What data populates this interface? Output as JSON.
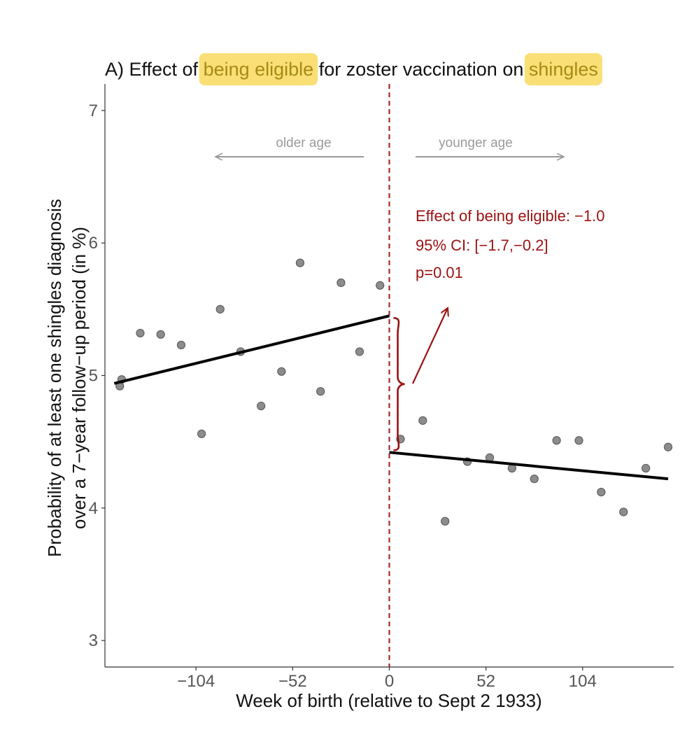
{
  "chart_data": {
    "type": "scatter",
    "title": {
      "prefix": "A) Effect of ",
      "highlight1": "being eligible",
      "middle": " for zoster vaccination on ",
      "highlight2": "shingles"
    },
    "xlabel": "Week of birth (relative to Sept 2 1933)",
    "ylabel_line1": "Probability of at least one shingles diagnosis",
    "ylabel_line2": "over a 7−year follow−up period (in %)",
    "xlim": [
      -153,
      153
    ],
    "ylim": [
      2.8,
      7.2
    ],
    "x_ticks": [
      {
        "value": -104,
        "label": "−104"
      },
      {
        "value": -52,
        "label": "−52"
      },
      {
        "value": 0,
        "label": "0"
      },
      {
        "value": 52,
        "label": "52"
      },
      {
        "value": 104,
        "label": "104"
      }
    ],
    "y_ticks": [
      {
        "value": 3,
        "label": "3"
      },
      {
        "value": 4,
        "label": "4"
      },
      {
        "value": 5,
        "label": "5"
      },
      {
        "value": 6,
        "label": "6"
      },
      {
        "value": 7,
        "label": "7"
      }
    ],
    "grid": false,
    "cutoff_x": 0,
    "points": [
      {
        "x": -145,
        "y": 4.92
      },
      {
        "x": -144,
        "y": 4.97
      },
      {
        "x": -134,
        "y": 5.32
      },
      {
        "x": -123,
        "y": 5.31
      },
      {
        "x": -112,
        "y": 5.23
      },
      {
        "x": -101,
        "y": 4.56
      },
      {
        "x": -91,
        "y": 5.5
      },
      {
        "x": -80,
        "y": 5.18
      },
      {
        "x": -69,
        "y": 4.77
      },
      {
        "x": -58,
        "y": 5.03
      },
      {
        "x": -48,
        "y": 5.85
      },
      {
        "x": -37,
        "y": 4.88
      },
      {
        "x": -26,
        "y": 5.7
      },
      {
        "x": -16,
        "y": 5.18
      },
      {
        "x": -5,
        "y": 5.68
      },
      {
        "x": 6,
        "y": 4.52
      },
      {
        "x": 18,
        "y": 4.66
      },
      {
        "x": 30,
        "y": 3.9
      },
      {
        "x": 42,
        "y": 4.35
      },
      {
        "x": 54,
        "y": 4.38
      },
      {
        "x": 66,
        "y": 4.3
      },
      {
        "x": 78,
        "y": 4.22
      },
      {
        "x": 90,
        "y": 4.51
      },
      {
        "x": 102,
        "y": 4.51
      },
      {
        "x": 114,
        "y": 4.12
      },
      {
        "x": 126,
        "y": 3.97
      },
      {
        "x": 138,
        "y": 4.3
      },
      {
        "x": 150,
        "y": 4.46
      }
    ],
    "fit_lines": [
      {
        "x": [
          -148,
          0
        ],
        "y": [
          4.94,
          5.45
        ]
      },
      {
        "x": [
          0,
          150
        ],
        "y": [
          4.42,
          4.22
        ]
      }
    ],
    "direction_labels": {
      "older": "older age",
      "younger": "younger age"
    },
    "annotation": {
      "line1": "Effect of being eligible: −1.0",
      "line2": "95% CI: [−1.7,−0.2]",
      "line3": "p=0.01"
    },
    "colors": {
      "point": "#8c8c8c",
      "line": "#000000",
      "cutoff": "#a52a2a",
      "annotation": "#9b1111",
      "highlight": "#f8d95e",
      "highlight_text": "#a88a14",
      "arrow_gray": "#9a9a9a"
    }
  }
}
